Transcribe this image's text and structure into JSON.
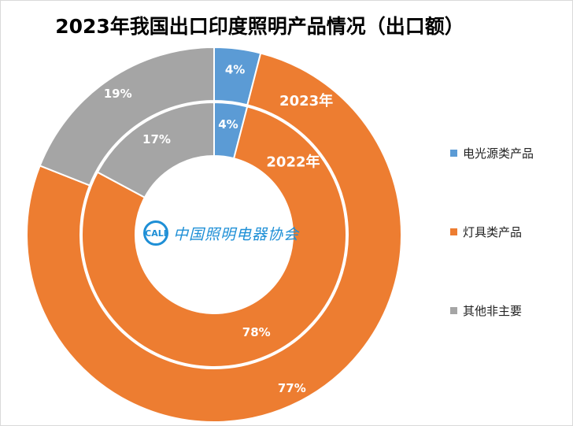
{
  "chart_data": {
    "type": "donut",
    "title": "2023年我国出口印度照明产品情况（出口额）",
    "rings": [
      {
        "name": "2023年",
        "slices": [
          {
            "category": "电光源类产品",
            "value": 4,
            "label": "4%"
          },
          {
            "category": "灯具类产品",
            "value": 77,
            "label": "77%"
          },
          {
            "category": "其他非主要",
            "value": 19,
            "label": "19%"
          }
        ]
      },
      {
        "name": "2022年",
        "slices": [
          {
            "category": "电光源类产品",
            "value": 4,
            "label": "4%"
          },
          {
            "category": "灯具类产品",
            "value": 78,
            "label": "78%"
          },
          {
            "category": "其他非主要",
            "value": 17,
            "label": "17%"
          }
        ]
      }
    ],
    "legend": {
      "placement": "right",
      "items": [
        {
          "label": "电光源类产品",
          "color": "#5b9bd5"
        },
        {
          "label": "灯具类产品",
          "color": "#ed7d31"
        },
        {
          "label": "其他非主要",
          "color": "#a5a5a5"
        }
      ]
    }
  },
  "logo": {
    "mark_text": "CALI",
    "name_text": "中国照明电器协会"
  }
}
